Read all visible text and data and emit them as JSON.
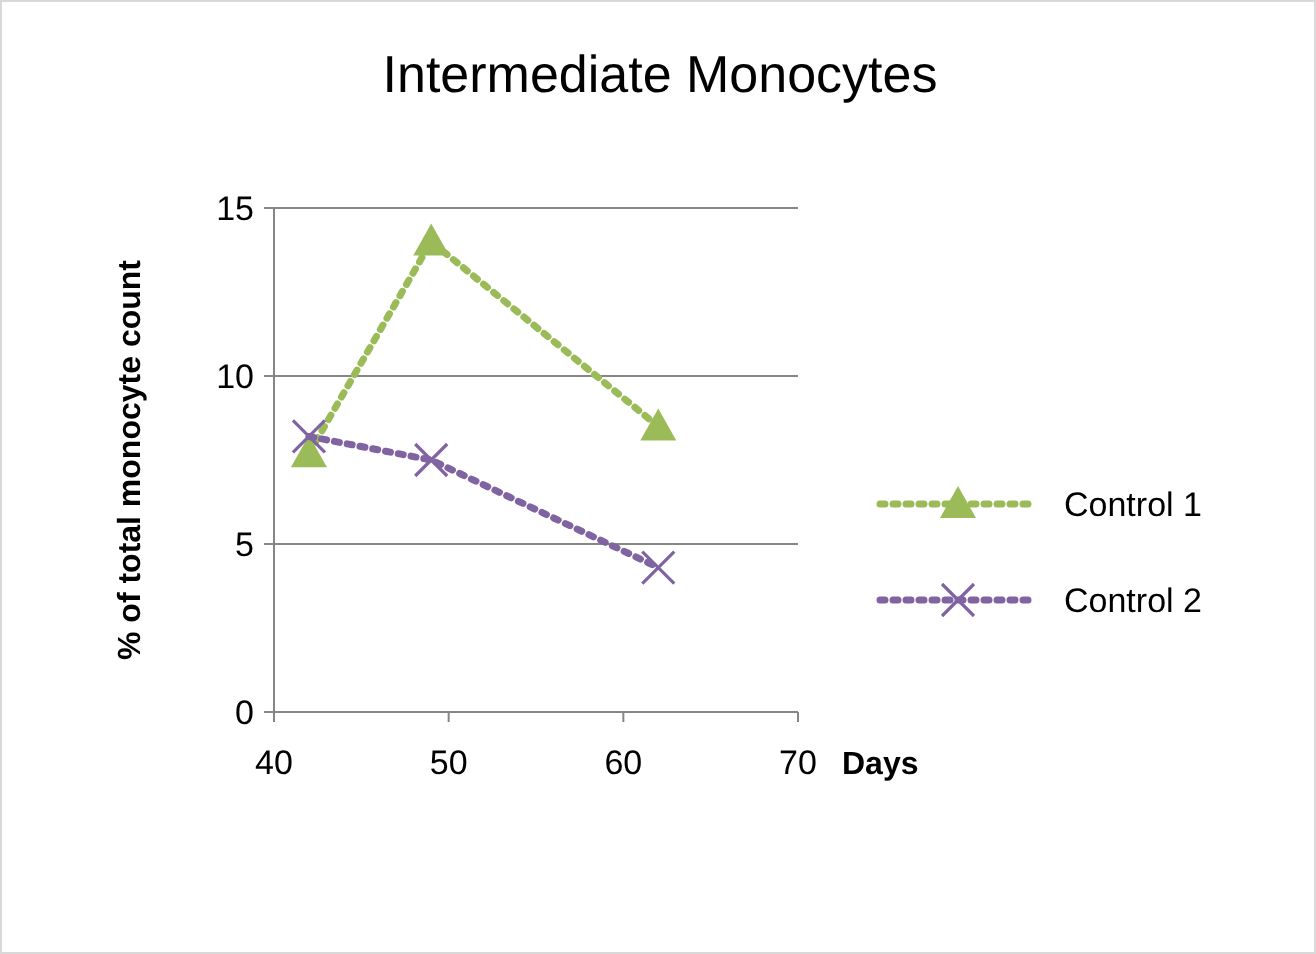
{
  "chart_data": {
    "type": "line",
    "title": "Intermediate Monocytes",
    "xlabel": "Days",
    "ylabel": "% of total monocyte count",
    "x": [
      42,
      49,
      62
    ],
    "series": [
      {
        "name": "Control 1",
        "color": "#9bbb59",
        "values": [
          7.7,
          14.0,
          8.5
        ],
        "marker": "triangle"
      },
      {
        "name": "Control 2",
        "color": "#8064a2",
        "values": [
          8.2,
          7.5,
          4.3
        ],
        "marker": "cross"
      }
    ],
    "xlim": [
      40,
      70
    ],
    "xticks": [
      40,
      50,
      60,
      70
    ],
    "ylim": [
      0,
      15
    ],
    "yticks": [
      0,
      5,
      10,
      15
    ],
    "grid": "y",
    "legend": "right",
    "line_style": "dotted"
  }
}
